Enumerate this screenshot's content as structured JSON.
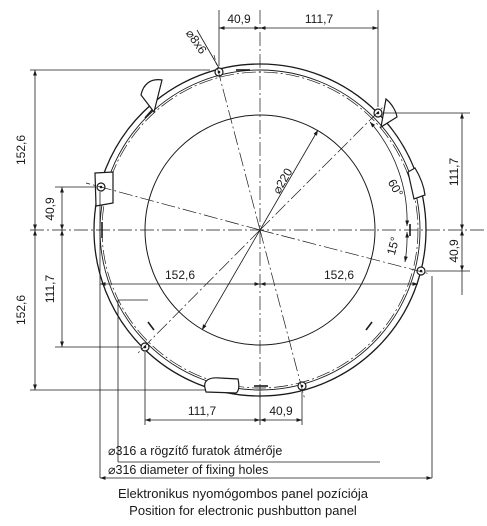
{
  "dimensions": {
    "top_small": "40,9",
    "top_large": "111,7",
    "hole_callout": "⌀8x6",
    "diameter_inner": "⌀220",
    "angle_60": "60°",
    "angle_15": "15°",
    "left_outer_top": "152,6",
    "left_outer_bottom": "152,6",
    "left_inner_top": "40,9",
    "left_inner_bottom": "111,7",
    "right_top": "111,7",
    "right_bottom": "40,9",
    "horiz_left": "152,6",
    "horiz_right": "152,6",
    "bottom_large": "111,7",
    "bottom_small": "40,9"
  },
  "captions": {
    "fixing_holes_hu": "⌀316 a rögzítő furatok átmérője",
    "fixing_holes_en": "⌀316 diameter of fixing holes",
    "panel_hu": "Elektronikus nyomógombos panel pozíciója",
    "panel_en": "Position for electronic pushbutton panel"
  }
}
